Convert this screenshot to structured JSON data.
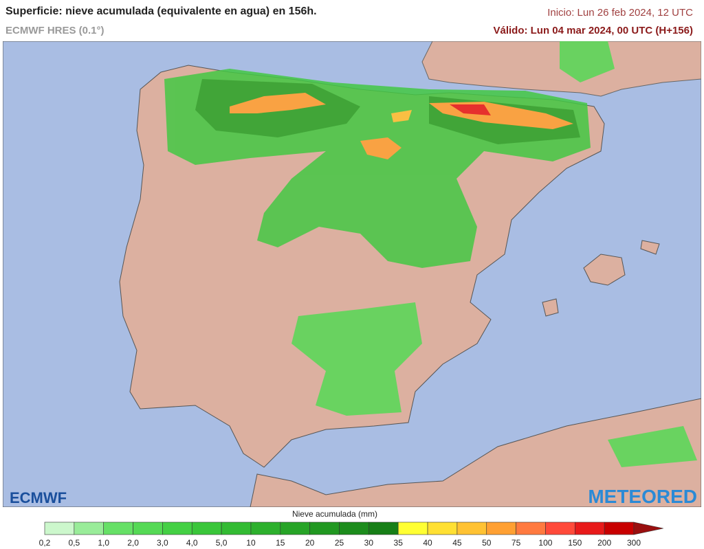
{
  "header": {
    "title": "Superficie: nieve acumulada (equivalente en agua) en 156h.",
    "model": "ECMWF HRES (0.1°)",
    "init": "Inicio: Lun 26 feb 2024, 12 UTC",
    "valid": "Válido: Lun 04 mar 2024, 00 UTC (H+156)"
  },
  "logos": {
    "left": "ECMWF",
    "right": "METEORED"
  },
  "legend": {
    "label": "Nieve acumulada (mm)",
    "ticks": [
      "0,2",
      "0,5",
      "1,0",
      "2,0",
      "3,0",
      "4,0",
      "5,0",
      "10",
      "15",
      "20",
      "25",
      "30",
      "35",
      "40",
      "45",
      "50",
      "75",
      "100",
      "150",
      "200",
      "300"
    ],
    "colors": [
      "#ccf7cc",
      "#99ec99",
      "#66e066",
      "#55d955",
      "#44d044",
      "#3ac63a",
      "#33bb33",
      "#2db02d",
      "#27a427",
      "#219821",
      "#1c8c1c",
      "#177f17",
      "#ffff33",
      "#ffe033",
      "#ffc233",
      "#ffa033",
      "#ff7a40",
      "#ff4a3a",
      "#e81a1a",
      "#c80000"
    ],
    "overflow_color": "#9a0f0f"
  }
}
